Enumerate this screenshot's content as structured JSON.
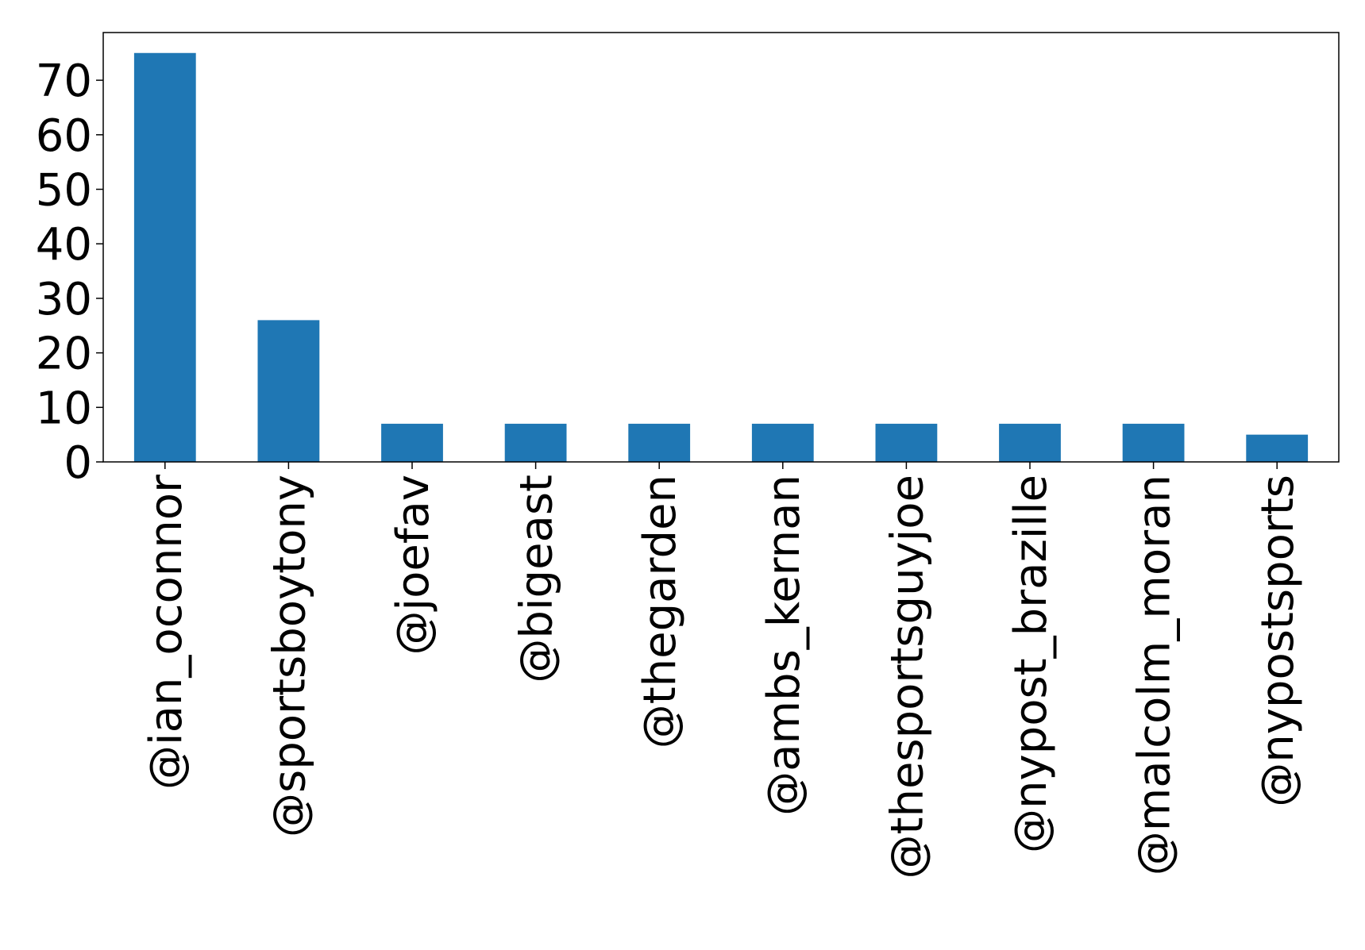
{
  "chart_data": {
    "type": "bar",
    "title": "",
    "xlabel": "",
    "ylabel": "",
    "categories": [
      "@ian_oconnor",
      "@sportsboytony",
      "@joefav",
      "@bigeast",
      "@thegarden",
      "@ambs_kernan",
      "@thesportsguyjoe",
      "@nypost_brazille",
      "@malcolm_moran",
      "@nypostsports"
    ],
    "values": [
      75,
      26,
      7,
      7,
      7,
      7,
      7,
      7,
      7,
      5
    ],
    "ylim": [
      0,
      78.75
    ],
    "yticks": [
      0,
      10,
      20,
      30,
      40,
      50,
      60,
      70
    ],
    "ytick_labels": [
      "0",
      "10",
      "20",
      "30",
      "40",
      "50",
      "60",
      "70"
    ],
    "bar_color": "#1f77b4",
    "grid": false,
    "legend": "none"
  }
}
